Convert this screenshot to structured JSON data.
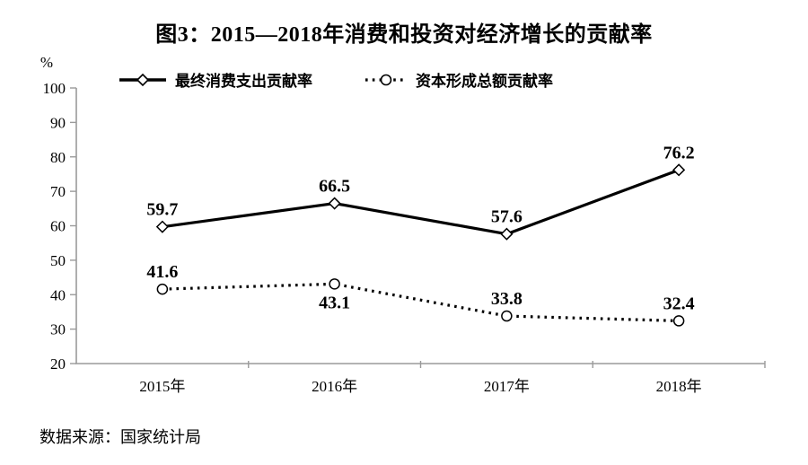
{
  "source_note": "数据来源：国家统计局",
  "chart_data": {
    "type": "line",
    "title": "图3：2015—2018年消费和投资对经济增长的贡献率",
    "categories": [
      "2015年",
      "2016年",
      "2017年",
      "2018年"
    ],
    "series": [
      {
        "name": "最终消费支出贡献率",
        "values": [
          59.7,
          66.5,
          57.6,
          76.2
        ],
        "line_style": "solid",
        "marker": "diamond",
        "label_positions": [
          "above",
          "above",
          "above",
          "above"
        ]
      },
      {
        "name": "资本形成总额贡献率",
        "values": [
          41.6,
          43.1,
          33.8,
          32.4
        ],
        "line_style": "dotted",
        "marker": "circle",
        "label_positions": [
          "above",
          "below",
          "above",
          "above"
        ]
      }
    ],
    "xlabel": "",
    "ylabel": "%",
    "ylim": [
      20,
      100
    ],
    "yticks": [
      100,
      90,
      80,
      70,
      60,
      50,
      40,
      30,
      20
    ],
    "grid": false,
    "legend_position": "top-left",
    "colors": {
      "series": "#000000",
      "axis": "#9a9a9a",
      "text": "#000000",
      "background": "#ffffff"
    }
  }
}
